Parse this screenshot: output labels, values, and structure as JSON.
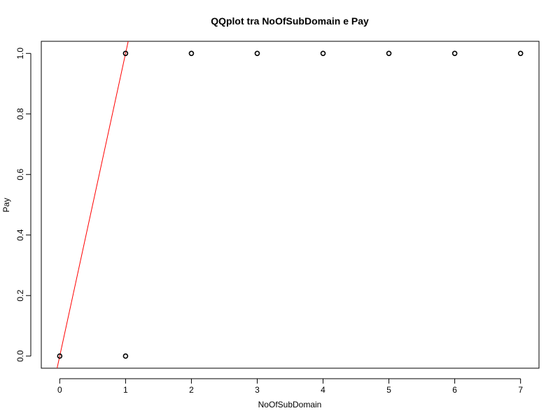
{
  "chart_data": {
    "type": "scatter",
    "title": "QQplot tra NoOfSubDomain e Pay",
    "xlabel": "NoOfSubDomain",
    "ylabel": "Pay",
    "xlim": [
      -0.28,
      7.28
    ],
    "ylim": [
      -0.04,
      1.04
    ],
    "x_ticks": [
      0,
      1,
      2,
      3,
      4,
      5,
      6,
      7
    ],
    "y_ticks": [
      0.0,
      0.2,
      0.4,
      0.6,
      0.8,
      1.0
    ],
    "x_tick_labels": [
      "0",
      "1",
      "2",
      "3",
      "4",
      "5",
      "6",
      "7"
    ],
    "y_tick_labels": [
      "0.0",
      "0.2",
      "0.4",
      "0.6",
      "0.8",
      "1.0"
    ],
    "grid": false,
    "points": [
      {
        "x": 0,
        "y": 0
      },
      {
        "x": 1,
        "y": 0
      },
      {
        "x": 1,
        "y": 1
      },
      {
        "x": 2,
        "y": 1
      },
      {
        "x": 3,
        "y": 1
      },
      {
        "x": 4,
        "y": 1
      },
      {
        "x": 5,
        "y": 1
      },
      {
        "x": 6,
        "y": 1
      },
      {
        "x": 7,
        "y": 1
      }
    ],
    "reference_line": {
      "intercept": 0,
      "slope": 1,
      "color": "#ff0000"
    },
    "point_color": "#000000"
  }
}
